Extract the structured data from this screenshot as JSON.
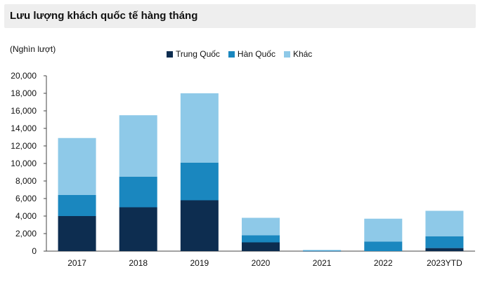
{
  "title": "Lưu lượng khách quốc tế hàng tháng",
  "unit_label": "(Nghìn lượt)",
  "colors": {
    "title_bg": "#eeeeee",
    "series_trung_quoc": "#0d2d50",
    "series_han_quoc": "#1a87bf",
    "series_khac": "#8ec9e8"
  },
  "chart_data": {
    "type": "bar",
    "stacked": true,
    "title": "Lưu lượng khách quốc tế hàng tháng",
    "ylabel": "(Nghìn lượt)",
    "xlabel": "",
    "categories": [
      "2017",
      "2018",
      "2019",
      "2020",
      "2021",
      "2022",
      "2023YTD"
    ],
    "ylim": [
      0,
      20000
    ],
    "yticks": [
      "0",
      "2,000",
      "4,000",
      "6,000",
      "8,000",
      "10,000",
      "12,000",
      "14,000",
      "16,000",
      "18,000",
      "20,000"
    ],
    "ytick_values": [
      0,
      2000,
      4000,
      6000,
      8000,
      10000,
      12000,
      14000,
      16000,
      18000,
      20000
    ],
    "legend_position": "top-center",
    "grid": false,
    "series": [
      {
        "name": "Trung Quốc",
        "color": "#0d2d50",
        "values": [
          4000,
          5000,
          5800,
          1000,
          20,
          0,
          350
        ]
      },
      {
        "name": "Hàn Quốc",
        "color": "#1a87bf",
        "values": [
          2400,
          3500,
          4300,
          800,
          40,
          1100,
          1350
        ]
      },
      {
        "name": "Khác",
        "color": "#8ec9e8",
        "values": [
          6500,
          7000,
          7900,
          2000,
          80,
          2600,
          2900
        ]
      }
    ]
  }
}
